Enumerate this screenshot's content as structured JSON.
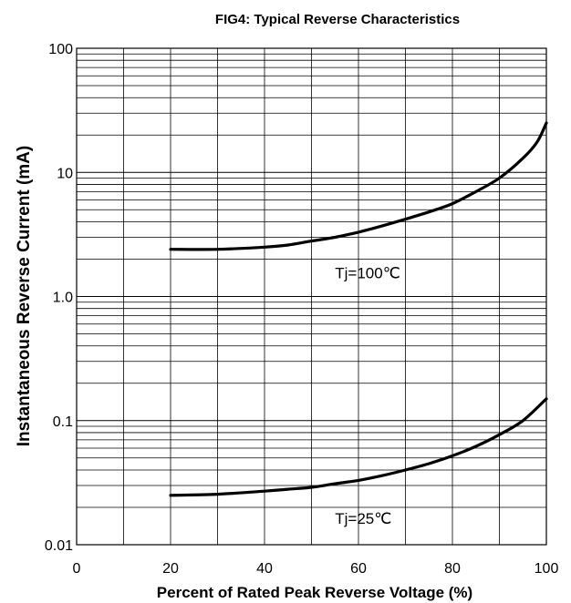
{
  "chart_data": {
    "type": "line",
    "title": "FIG4:  Typical Reverse Characteristics",
    "xlabel": "Percent of Rated Peak Reverse Voltage (%)",
    "ylabel": "Instantaneous Reverse Current (mA)",
    "xlim": [
      0,
      100
    ],
    "ylim": [
      0.01,
      100
    ],
    "yscale": "log",
    "grid": true,
    "x_ticks": [
      0,
      20,
      40,
      60,
      80,
      100
    ],
    "x_tick_labels": [
      "0",
      "20",
      "40",
      "60",
      "80",
      "100"
    ],
    "y_ticks": [
      100,
      10,
      1,
      0.1,
      0.01
    ],
    "y_tick_labels": [
      "100",
      "10",
      "1.0",
      "0.1",
      "0.01"
    ],
    "line_color": "#000000",
    "series": [
      {
        "annotation": "Tj=100℃",
        "annotation_at": [
          55,
          1.4
        ],
        "x": [
          20,
          30,
          40,
          45,
          50,
          55,
          60,
          65,
          70,
          75,
          80,
          85,
          90,
          95,
          98,
          100
        ],
        "y": [
          2.4,
          2.4,
          2.5,
          2.6,
          2.8,
          3.0,
          3.3,
          3.7,
          4.2,
          4.8,
          5.6,
          7.0,
          9.0,
          13.0,
          17.5,
          25.0
        ]
      },
      {
        "annotation": "Tj=25℃",
        "annotation_at": [
          55,
          0.0148
        ],
        "x": [
          20,
          30,
          40,
          45,
          50,
          55,
          60,
          65,
          70,
          75,
          80,
          85,
          90,
          95,
          100
        ],
        "y": [
          0.025,
          0.0255,
          0.027,
          0.028,
          0.029,
          0.031,
          0.033,
          0.036,
          0.04,
          0.045,
          0.052,
          0.062,
          0.077,
          0.1,
          0.15
        ]
      }
    ]
  }
}
